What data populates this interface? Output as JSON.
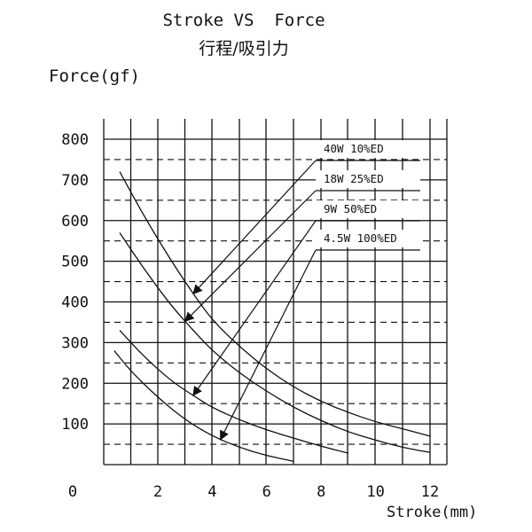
{
  "chart_data": {
    "type": "line",
    "title": "Stroke VS  Force",
    "subtitle": "行程/吸引力",
    "xlabel": "Stroke(mm)",
    "ylabel": "Force(gf)",
    "xlim": [
      0,
      12
    ],
    "ylim": [
      0,
      800
    ],
    "x_ticks": [
      "0",
      "2",
      "4",
      "6",
      "8",
      "10",
      "12"
    ],
    "y_ticks": [
      "100",
      "200",
      "300",
      "400",
      "500",
      "600",
      "700",
      "800"
    ],
    "grid": true,
    "series": [
      {
        "name": "40W 10%ED",
        "points": [
          [
            0.6,
            720
          ],
          [
            1.5,
            610
          ],
          [
            2.5,
            500
          ],
          [
            3.3,
            420
          ],
          [
            4,
            355
          ],
          [
            5,
            290
          ],
          [
            6,
            235
          ],
          [
            7,
            190
          ],
          [
            8,
            155
          ],
          [
            9,
            128
          ],
          [
            10,
            105
          ],
          [
            11,
            88
          ],
          [
            12,
            70
          ]
        ]
      },
      {
        "name": "18W 25%ED",
        "points": [
          [
            0.6,
            570
          ],
          [
            1.5,
            480
          ],
          [
            2.5,
            390
          ],
          [
            3.3,
            330
          ],
          [
            4,
            280
          ],
          [
            5,
            225
          ],
          [
            6,
            180
          ],
          [
            7,
            140
          ],
          [
            8,
            108
          ],
          [
            9,
            80
          ],
          [
            10,
            60
          ],
          [
            11,
            42
          ],
          [
            12,
            30
          ]
        ]
      },
      {
        "name": "9W  50%ED",
        "points": [
          [
            0.6,
            330
          ],
          [
            1.5,
            265
          ],
          [
            2.5,
            205
          ],
          [
            3.3,
            170
          ],
          [
            4,
            140
          ],
          [
            5,
            110
          ],
          [
            6,
            85
          ],
          [
            7,
            65
          ],
          [
            8,
            45
          ],
          [
            9,
            28
          ]
        ]
      },
      {
        "name": "4.5W 100%ED",
        "points": [
          [
            0.4,
            280
          ],
          [
            1,
            230
          ],
          [
            2,
            165
          ],
          [
            3,
            110
          ],
          [
            4,
            70
          ],
          [
            5,
            42
          ],
          [
            6,
            22
          ],
          [
            7,
            8
          ]
        ]
      }
    ]
  }
}
